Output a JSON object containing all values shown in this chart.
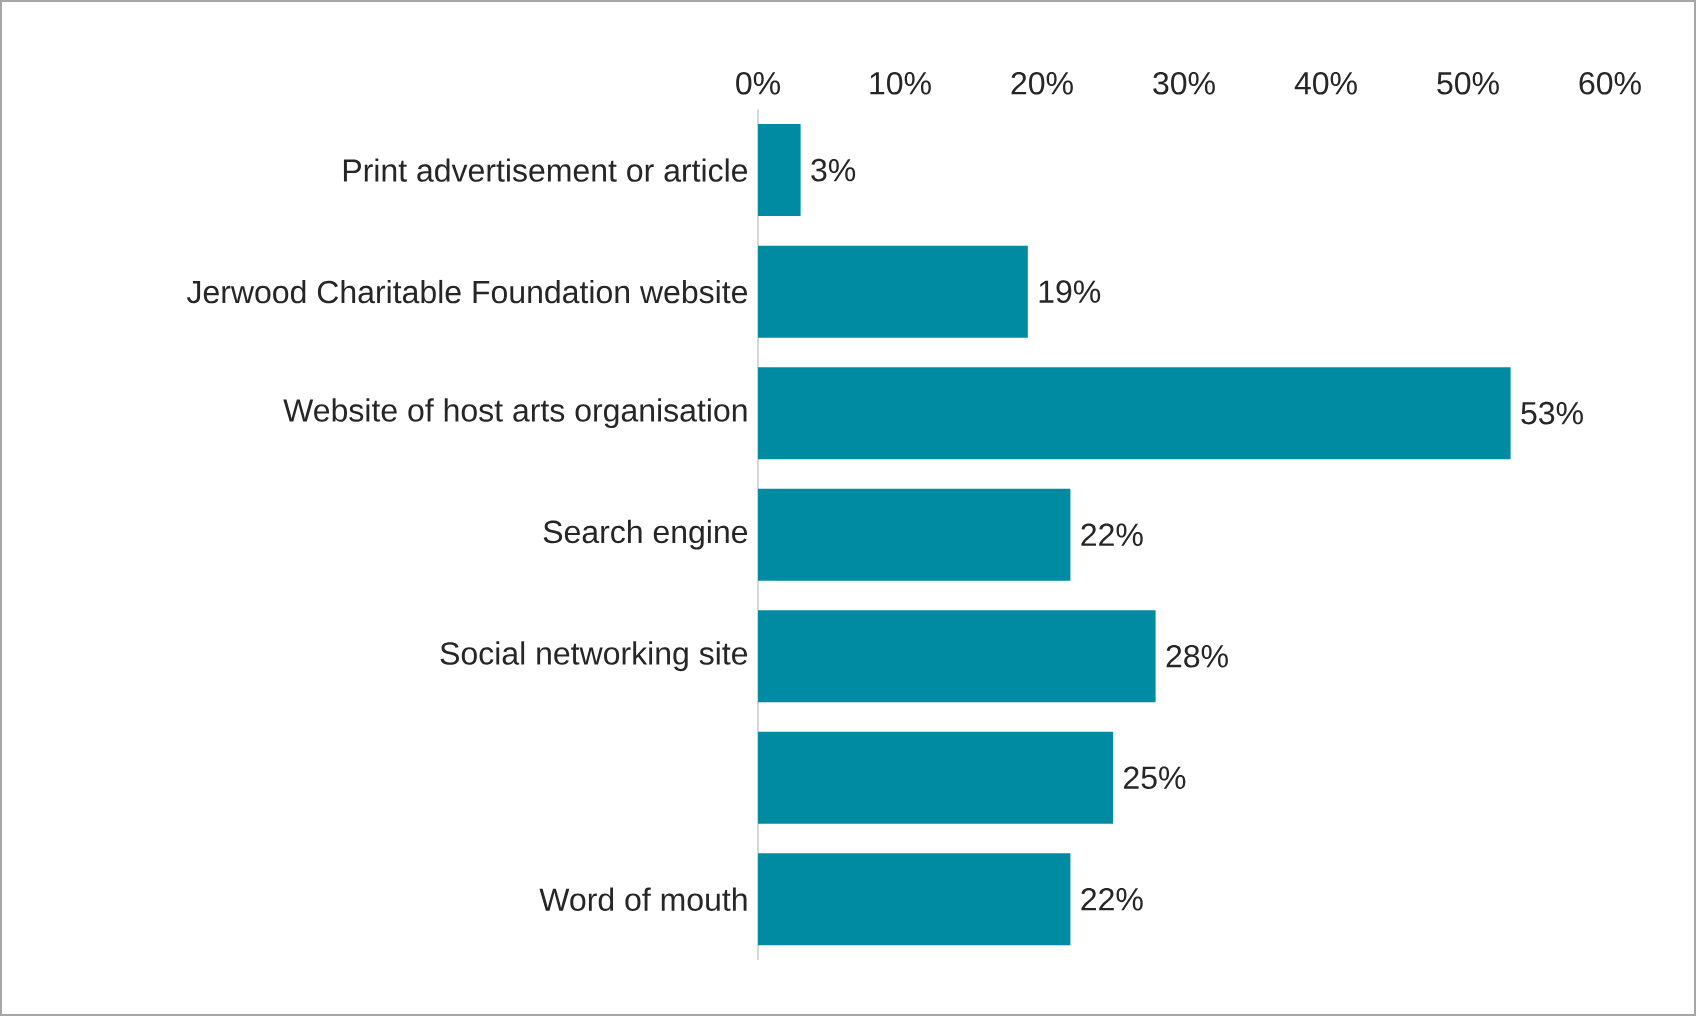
{
  "chart_data": {
    "type": "bar",
    "orientation": "horizontal",
    "categories": [
      "Print advertisement or article",
      "Jerwood Charitable Foundation website",
      "Website of host arts organisation",
      "Search engine",
      "Social networking site",
      null,
      "Word of mouth"
    ],
    "values": [
      3,
      19,
      53,
      22,
      28,
      25,
      22
    ],
    "value_labels": [
      "3%",
      "19%",
      "53%",
      "22%",
      "28%",
      "25%",
      "22%"
    ],
    "color": "#008ba3",
    "xlim": [
      0,
      60
    ],
    "xticks": [
      {
        "value": 0,
        "label": "0%"
      },
      {
        "value": 10,
        "label": "10%"
      },
      {
        "value": 20,
        "label": "20%"
      },
      {
        "value": 30,
        "label": "30%"
      },
      {
        "value": 40,
        "label": "40%"
      },
      {
        "value": 50,
        "label": "50%"
      },
      {
        "value": 60,
        "label": "60%"
      }
    ],
    "grid": false
  }
}
